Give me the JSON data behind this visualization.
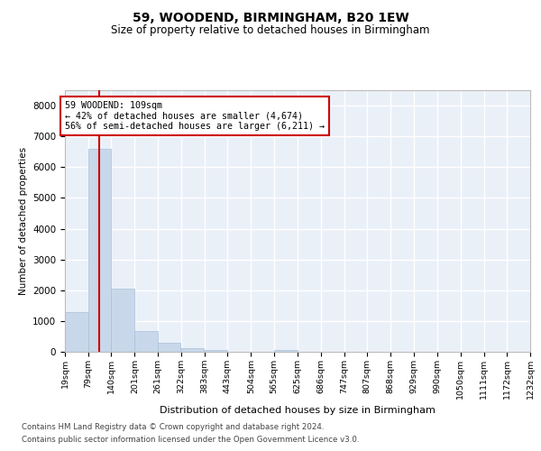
{
  "title1": "59, WOODEND, BIRMINGHAM, B20 1EW",
  "title2": "Size of property relative to detached houses in Birmingham",
  "xlabel": "Distribution of detached houses by size in Birmingham",
  "ylabel": "Number of detached properties",
  "annotation_line1": "59 WOODEND: 109sqm",
  "annotation_line2": "← 42% of detached houses are smaller (4,674)",
  "annotation_line3": "56% of semi-detached houses are larger (6,211) →",
  "property_size_sqm": 109,
  "bar_color": "#c8d8ea",
  "bar_edge_color": "#a8c0d8",
  "vline_color": "#cc0000",
  "annotation_box_facecolor": "#ffffff",
  "annotation_box_edgecolor": "#cc0000",
  "background_color": "#eaf0f8",
  "grid_color": "#ffffff",
  "bins": [
    19,
    79,
    140,
    201,
    261,
    322,
    383,
    443,
    504,
    565,
    625,
    686,
    747,
    807,
    868,
    929,
    990,
    1050,
    1111,
    1172,
    1232
  ],
  "bin_labels": [
    "19sqm",
    "79sqm",
    "140sqm",
    "201sqm",
    "261sqm",
    "322sqm",
    "383sqm",
    "443sqm",
    "504sqm",
    "565sqm",
    "625sqm",
    "686sqm",
    "747sqm",
    "807sqm",
    "868sqm",
    "929sqm",
    "990sqm",
    "1050sqm",
    "1111sqm",
    "1172sqm",
    "1232sqm"
  ],
  "values": [
    1300,
    6600,
    2050,
    680,
    280,
    120,
    70,
    0,
    0,
    70,
    0,
    0,
    0,
    0,
    0,
    0,
    0,
    0,
    0,
    0
  ],
  "ylim": [
    0,
    8500
  ],
  "yticks": [
    0,
    1000,
    2000,
    3000,
    4000,
    5000,
    6000,
    7000,
    8000
  ],
  "footnote1": "Contains HM Land Registry data © Crown copyright and database right 2024.",
  "footnote2": "Contains public sector information licensed under the Open Government Licence v3.0."
}
